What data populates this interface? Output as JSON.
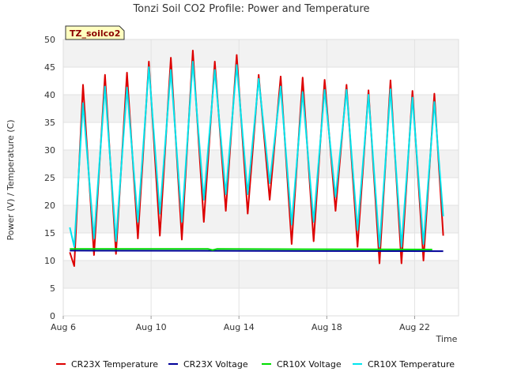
{
  "chart_data": {
    "type": "line",
    "title": "Tonzi Soil CO2 Profile: Power and Temperature",
    "xlabel": "Time",
    "ylabel": "Power (V) / Temperature (C)",
    "site_label": "TZ_soilco2",
    "xlim": [
      6.0,
      24.0
    ],
    "ylim": [
      0,
      50
    ],
    "x_ticks": [
      {
        "value": 6,
        "label": "Aug 6"
      },
      {
        "value": 10,
        "label": "Aug 10"
      },
      {
        "value": 14,
        "label": "Aug 14"
      },
      {
        "value": 18,
        "label": "Aug 18"
      },
      {
        "value": 22,
        "label": "Aug 22"
      }
    ],
    "y_ticks": [
      0,
      5,
      10,
      15,
      20,
      25,
      30,
      35,
      40,
      45,
      50
    ],
    "grid": true,
    "legend_position": "bottom",
    "series": [
      {
        "name": "CR23X Temperature",
        "color": "#dd0000",
        "points": [
          [
            6.3,
            11.5
          ],
          [
            6.5,
            9.0
          ],
          [
            6.9,
            41.8
          ],
          [
            7.4,
            11.0
          ],
          [
            7.9,
            43.6
          ],
          [
            8.4,
            11.2
          ],
          [
            8.9,
            44.0
          ],
          [
            9.4,
            14.0
          ],
          [
            9.9,
            46.0
          ],
          [
            10.4,
            14.5
          ],
          [
            10.9,
            46.7
          ],
          [
            11.4,
            13.8
          ],
          [
            11.9,
            48.0
          ],
          [
            12.4,
            17.0
          ],
          [
            12.9,
            46.0
          ],
          [
            13.4,
            19.0
          ],
          [
            13.9,
            47.2
          ],
          [
            14.4,
            18.5
          ],
          [
            14.9,
            43.6
          ],
          [
            15.4,
            21.0
          ],
          [
            15.9,
            43.3
          ],
          [
            16.4,
            13.0
          ],
          [
            16.9,
            43.1
          ],
          [
            17.4,
            13.5
          ],
          [
            17.9,
            42.7
          ],
          [
            18.4,
            19.0
          ],
          [
            18.9,
            41.8
          ],
          [
            19.4,
            12.5
          ],
          [
            19.9,
            40.8
          ],
          [
            20.4,
            9.5
          ],
          [
            20.9,
            42.6
          ],
          [
            21.4,
            9.5
          ],
          [
            21.9,
            40.7
          ],
          [
            22.4,
            10.0
          ],
          [
            22.9,
            40.2
          ],
          [
            23.3,
            14.5
          ]
        ]
      },
      {
        "name": "CR23X Voltage",
        "color": "#000099",
        "points": [
          [
            6.3,
            11.8
          ],
          [
            23.3,
            11.7
          ]
        ]
      },
      {
        "name": "CR10X Voltage",
        "color": "#00dd00",
        "points": [
          [
            6.3,
            12.1
          ],
          [
            12.6,
            12.1
          ],
          [
            12.8,
            11.9
          ],
          [
            13.0,
            12.1
          ],
          [
            22.8,
            12.0
          ]
        ]
      },
      {
        "name": "CR10X Temperature",
        "color": "#00e5ee",
        "points": [
          [
            6.3,
            16.0
          ],
          [
            6.5,
            12.5
          ],
          [
            6.9,
            38.5
          ],
          [
            7.4,
            14.0
          ],
          [
            7.9,
            41.5
          ],
          [
            8.4,
            13.5
          ],
          [
            8.9,
            41.3
          ],
          [
            9.4,
            17.0
          ],
          [
            9.9,
            45.0
          ],
          [
            10.4,
            18.5
          ],
          [
            10.9,
            44.5
          ],
          [
            11.4,
            17.0
          ],
          [
            11.9,
            46.0
          ],
          [
            12.4,
            21.0
          ],
          [
            12.9,
            44.5
          ],
          [
            13.4,
            22.0
          ],
          [
            13.9,
            45.4
          ],
          [
            14.4,
            22.0
          ],
          [
            14.9,
            42.9
          ],
          [
            15.4,
            24.0
          ],
          [
            15.9,
            41.5
          ],
          [
            16.4,
            16.5
          ],
          [
            16.9,
            40.5
          ],
          [
            17.4,
            17.0
          ],
          [
            17.9,
            40.9
          ],
          [
            18.4,
            21.5
          ],
          [
            18.9,
            40.9
          ],
          [
            19.4,
            15.5
          ],
          [
            19.9,
            40.0
          ],
          [
            20.4,
            12.5
          ],
          [
            20.9,
            41.0
          ],
          [
            21.4,
            12.5
          ],
          [
            21.9,
            39.5
          ],
          [
            22.4,
            13.0
          ],
          [
            22.9,
            38.7
          ],
          [
            23.3,
            18.0
          ]
        ]
      }
    ]
  }
}
